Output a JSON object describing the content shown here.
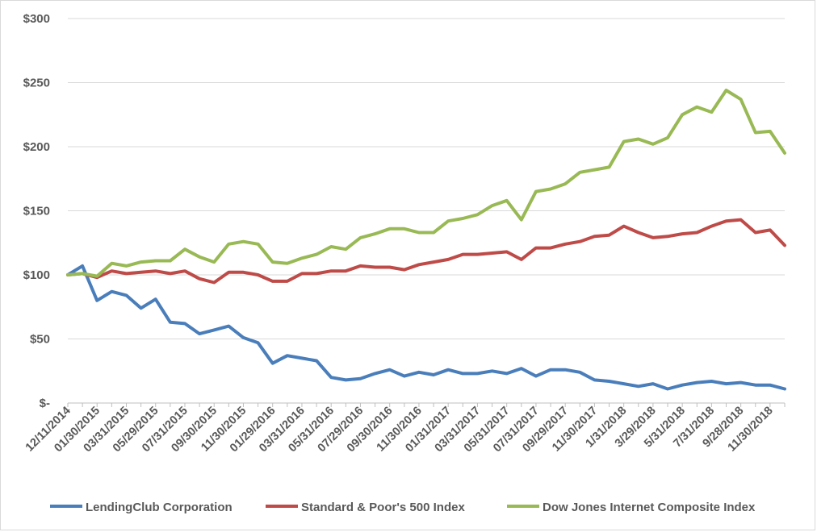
{
  "chart_data": {
    "type": "line",
    "title": "",
    "xlabel": "",
    "ylabel": "",
    "ylim": [
      0,
      300
    ],
    "yticks": [
      {
        "value": 0,
        "label": "$-"
      },
      {
        "value": 50,
        "label": "$50"
      },
      {
        "value": 100,
        "label": "$100"
      },
      {
        "value": 150,
        "label": "$150"
      },
      {
        "value": 200,
        "label": "$200"
      },
      {
        "value": 250,
        "label": "$250"
      },
      {
        "value": 300,
        "label": "$300"
      }
    ],
    "grid": true,
    "legend_position": "bottom",
    "x_tick_labels": [
      {
        "index": 0,
        "label": "12/11/2014"
      },
      {
        "index": 2,
        "label": "01/30/2015"
      },
      {
        "index": 4,
        "label": "03/31/2015"
      },
      {
        "index": 6,
        "label": "05/29/2015"
      },
      {
        "index": 8,
        "label": "07/31/2015"
      },
      {
        "index": 10,
        "label": "09/30/2015"
      },
      {
        "index": 12,
        "label": "11/30/2015"
      },
      {
        "index": 14,
        "label": "01/29/2016"
      },
      {
        "index": 16,
        "label": "03/31/2016"
      },
      {
        "index": 18,
        "label": "05/31/2016"
      },
      {
        "index": 20,
        "label": "07/29/2016"
      },
      {
        "index": 22,
        "label": "09/30/2016"
      },
      {
        "index": 24,
        "label": "11/30/2016"
      },
      {
        "index": 26,
        "label": "01/31/2017"
      },
      {
        "index": 28,
        "label": "03/31/2017"
      },
      {
        "index": 30,
        "label": "05/31/2017"
      },
      {
        "index": 32,
        "label": "07/31/2017"
      },
      {
        "index": 34,
        "label": "09/29/2017"
      },
      {
        "index": 36,
        "label": "11/30/2017"
      },
      {
        "index": 38,
        "label": "1/31/2018"
      },
      {
        "index": 40,
        "label": "3/29/2018"
      },
      {
        "index": 42,
        "label": "5/31/2018"
      },
      {
        "index": 44,
        "label": "7/31/2018"
      },
      {
        "index": 46,
        "label": "9/28/2018"
      },
      {
        "index": 48,
        "label": "11/30/2018"
      }
    ],
    "series": [
      {
        "name": "LendingClub Corporation",
        "color": "#4a7ebb",
        "values": [
          100,
          107,
          80,
          87,
          84,
          74,
          81,
          63,
          62,
          54,
          57,
          60,
          51,
          47,
          31,
          37,
          35,
          33,
          20,
          18,
          19,
          23,
          26,
          21,
          24,
          22,
          26,
          23,
          23,
          25,
          23,
          27,
          21,
          26,
          26,
          24,
          18,
          17,
          15,
          13,
          15,
          11,
          14,
          16,
          17,
          15,
          16,
          14,
          14,
          11
        ]
      },
      {
        "name": "Standard & Poor's 500 Index",
        "color": "#be4b48",
        "values": [
          100,
          101,
          98,
          103,
          101,
          102,
          103,
          101,
          103,
          97,
          94,
          102,
          102,
          100,
          95,
          95,
          101,
          101,
          103,
          103,
          107,
          106,
          106,
          104,
          108,
          110,
          112,
          116,
          116,
          117,
          118,
          112,
          121,
          121,
          124,
          126,
          130,
          131,
          138,
          133,
          129,
          130,
          132,
          133,
          138,
          142,
          143,
          133,
          135,
          123
        ]
      },
      {
        "name": "Dow Jones Internet Composite Index",
        "color": "#98b954",
        "values": [
          100,
          101,
          99,
          109,
          107,
          110,
          111,
          111,
          120,
          114,
          110,
          124,
          126,
          124,
          110,
          109,
          113,
          116,
          122,
          120,
          129,
          132,
          136,
          136,
          133,
          133,
          142,
          144,
          147,
          154,
          158,
          143,
          165,
          167,
          171,
          180,
          182,
          184,
          204,
          206,
          202,
          207,
          225,
          231,
          227,
          244,
          237,
          211,
          212,
          195
        ]
      }
    ]
  }
}
